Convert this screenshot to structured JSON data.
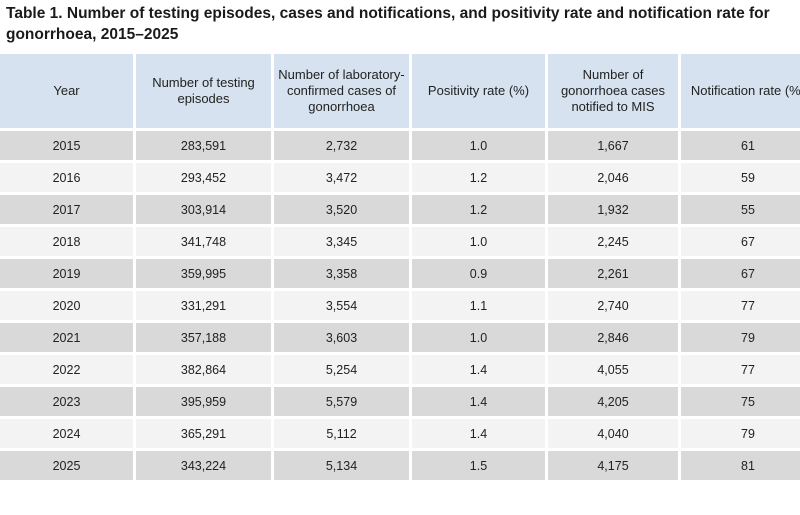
{
  "caption": "Table 1. Number of testing episodes, cases and notifications, and positivity rate and notification rate for gonorrhoea, 2015–2025",
  "headers": [
    "Year",
    "Number of testing episodes",
    "Number of laboratory-confirmed cases of gonorrhoea",
    "Positivity rate (%)",
    "Number of gonorrhoea cases notified to MIS",
    "Notification rate (%)"
  ],
  "rows": [
    [
      "2015",
      "283,591",
      "2,732",
      "1.0",
      "1,667",
      "61"
    ],
    [
      "2016",
      "293,452",
      "3,472",
      "1.2",
      "2,046",
      "59"
    ],
    [
      "2017",
      "303,914",
      "3,520",
      "1.2",
      "1,932",
      "55"
    ],
    [
      "2018",
      "341,748",
      "3,345",
      "1.0",
      "2,245",
      "67"
    ],
    [
      "2019",
      "359,995",
      "3,358",
      "0.9",
      "2,261",
      "67"
    ],
    [
      "2020",
      "331,291",
      "3,554",
      "1.1",
      "2,740",
      "77"
    ],
    [
      "2021",
      "357,188",
      "3,603",
      "1.0",
      "2,846",
      "79"
    ],
    [
      "2022",
      "382,864",
      "5,254",
      "1.4",
      "4,055",
      "77"
    ],
    [
      "2023",
      "395,959",
      "5,579",
      "1.4",
      "4,205",
      "75"
    ],
    [
      "2024",
      "365,291",
      "5,112",
      "1.4",
      "4,040",
      "79"
    ],
    [
      "2025",
      "343,224",
      "5,134",
      "1.5",
      "4,175",
      "81"
    ]
  ],
  "colors": {
    "header_bg": "#d6e2ef",
    "row_shaded": "#d9d9d9",
    "row_plain": "#f3f3f3"
  }
}
